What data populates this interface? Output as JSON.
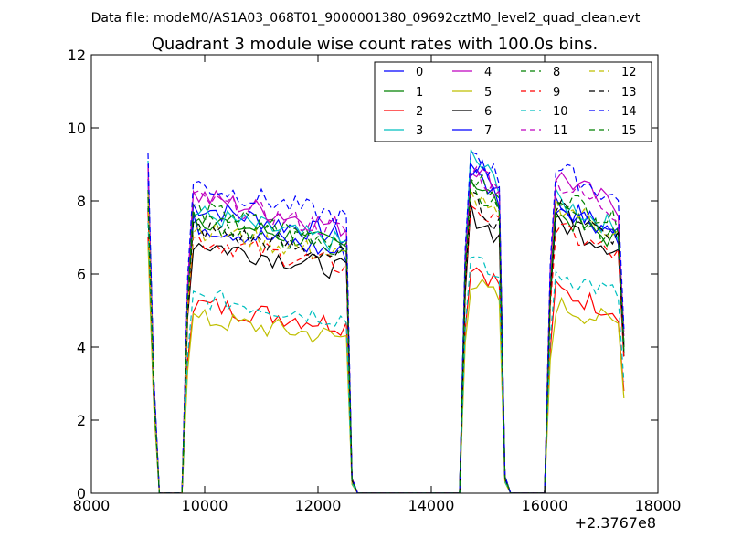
{
  "figure": {
    "suptitle": "Data file: modeM0/AS1A03_068T01_9000001380_09692cztM0_level2_quad_clean.evt"
  },
  "chart_data": {
    "type": "line",
    "title": "Quadrant 3 module wise count rates with 100.0s bins.",
    "xlabel": "",
    "ylabel": "",
    "x_offset_label": "+2.3767e8",
    "xlim": [
      8000,
      18000
    ],
    "ylim": [
      0,
      12
    ],
    "xticks": [
      8000,
      10000,
      12000,
      14000,
      16000,
      18000
    ],
    "yticks": [
      0,
      2,
      4,
      6,
      8,
      10,
      12
    ],
    "legend_position": "top-right",
    "legend_columns": 4,
    "segments": [
      {
        "start": 9000,
        "step": 100,
        "points": 3
      },
      {
        "start": 9700,
        "step": 100,
        "points": 30
      },
      {
        "start": 14600,
        "step": 100,
        "points": 8
      },
      {
        "start": 16100,
        "step": 100,
        "points": 14
      }
    ],
    "series": [
      {
        "name": "0",
        "color": "#0000ff",
        "dash": false,
        "plateaus": [
          9.0,
          7.9,
          9.3,
          8.0
        ]
      },
      {
        "name": "1",
        "color": "#008000",
        "dash": false,
        "plateaus": [
          8.2,
          7.6,
          8.8,
          7.7
        ]
      },
      {
        "name": "2",
        "color": "#ff0000",
        "dash": false,
        "plateaus": [
          7.0,
          5.2,
          6.4,
          5.6
        ]
      },
      {
        "name": "3",
        "color": "#00bfbf",
        "dash": false,
        "plateaus": [
          9.1,
          7.7,
          9.4,
          8.1
        ]
      },
      {
        "name": "4",
        "color": "#bf00bf",
        "dash": false,
        "plateaus": [
          9.0,
          8.2,
          9.2,
          8.8
        ]
      },
      {
        "name": "5",
        "color": "#bfbf00",
        "dash": false,
        "plateaus": [
          6.8,
          4.8,
          5.9,
          5.2
        ]
      },
      {
        "name": "6",
        "color": "#000000",
        "dash": false,
        "plateaus": [
          7.8,
          6.9,
          7.8,
          7.5
        ]
      },
      {
        "name": "7",
        "color": "#0000ff",
        "dash": false,
        "plateaus": [
          8.6,
          7.4,
          9.0,
          8.0
        ]
      },
      {
        "name": "8",
        "color": "#008000",
        "dash": true,
        "plateaus": [
          8.3,
          7.8,
          8.9,
          8.3
        ]
      },
      {
        "name": "9",
        "color": "#ff0000",
        "dash": true,
        "plateaus": [
          7.7,
          7.0,
          8.1,
          7.3
        ]
      },
      {
        "name": "10",
        "color": "#00bfbf",
        "dash": true,
        "plateaus": [
          7.4,
          5.4,
          6.5,
          6.1
        ]
      },
      {
        "name": "11",
        "color": "#bf00bf",
        "dash": true,
        "plateaus": [
          8.9,
          8.1,
          9.1,
          8.6
        ]
      },
      {
        "name": "12",
        "color": "#bfbf00",
        "dash": true,
        "plateaus": [
          8.2,
          7.3,
          8.3,
          8.0
        ]
      },
      {
        "name": "13",
        "color": "#000000",
        "dash": true,
        "plateaus": [
          8.1,
          7.3,
          8.2,
          7.9
        ]
      },
      {
        "name": "14",
        "color": "#0000ff",
        "dash": true,
        "plateaus": [
          9.3,
          8.5,
          9.6,
          9.0
        ]
      },
      {
        "name": "15",
        "color": "#008000",
        "dash": true,
        "plateaus": [
          8.1,
          7.5,
          8.6,
          7.8
        ]
      }
    ]
  }
}
